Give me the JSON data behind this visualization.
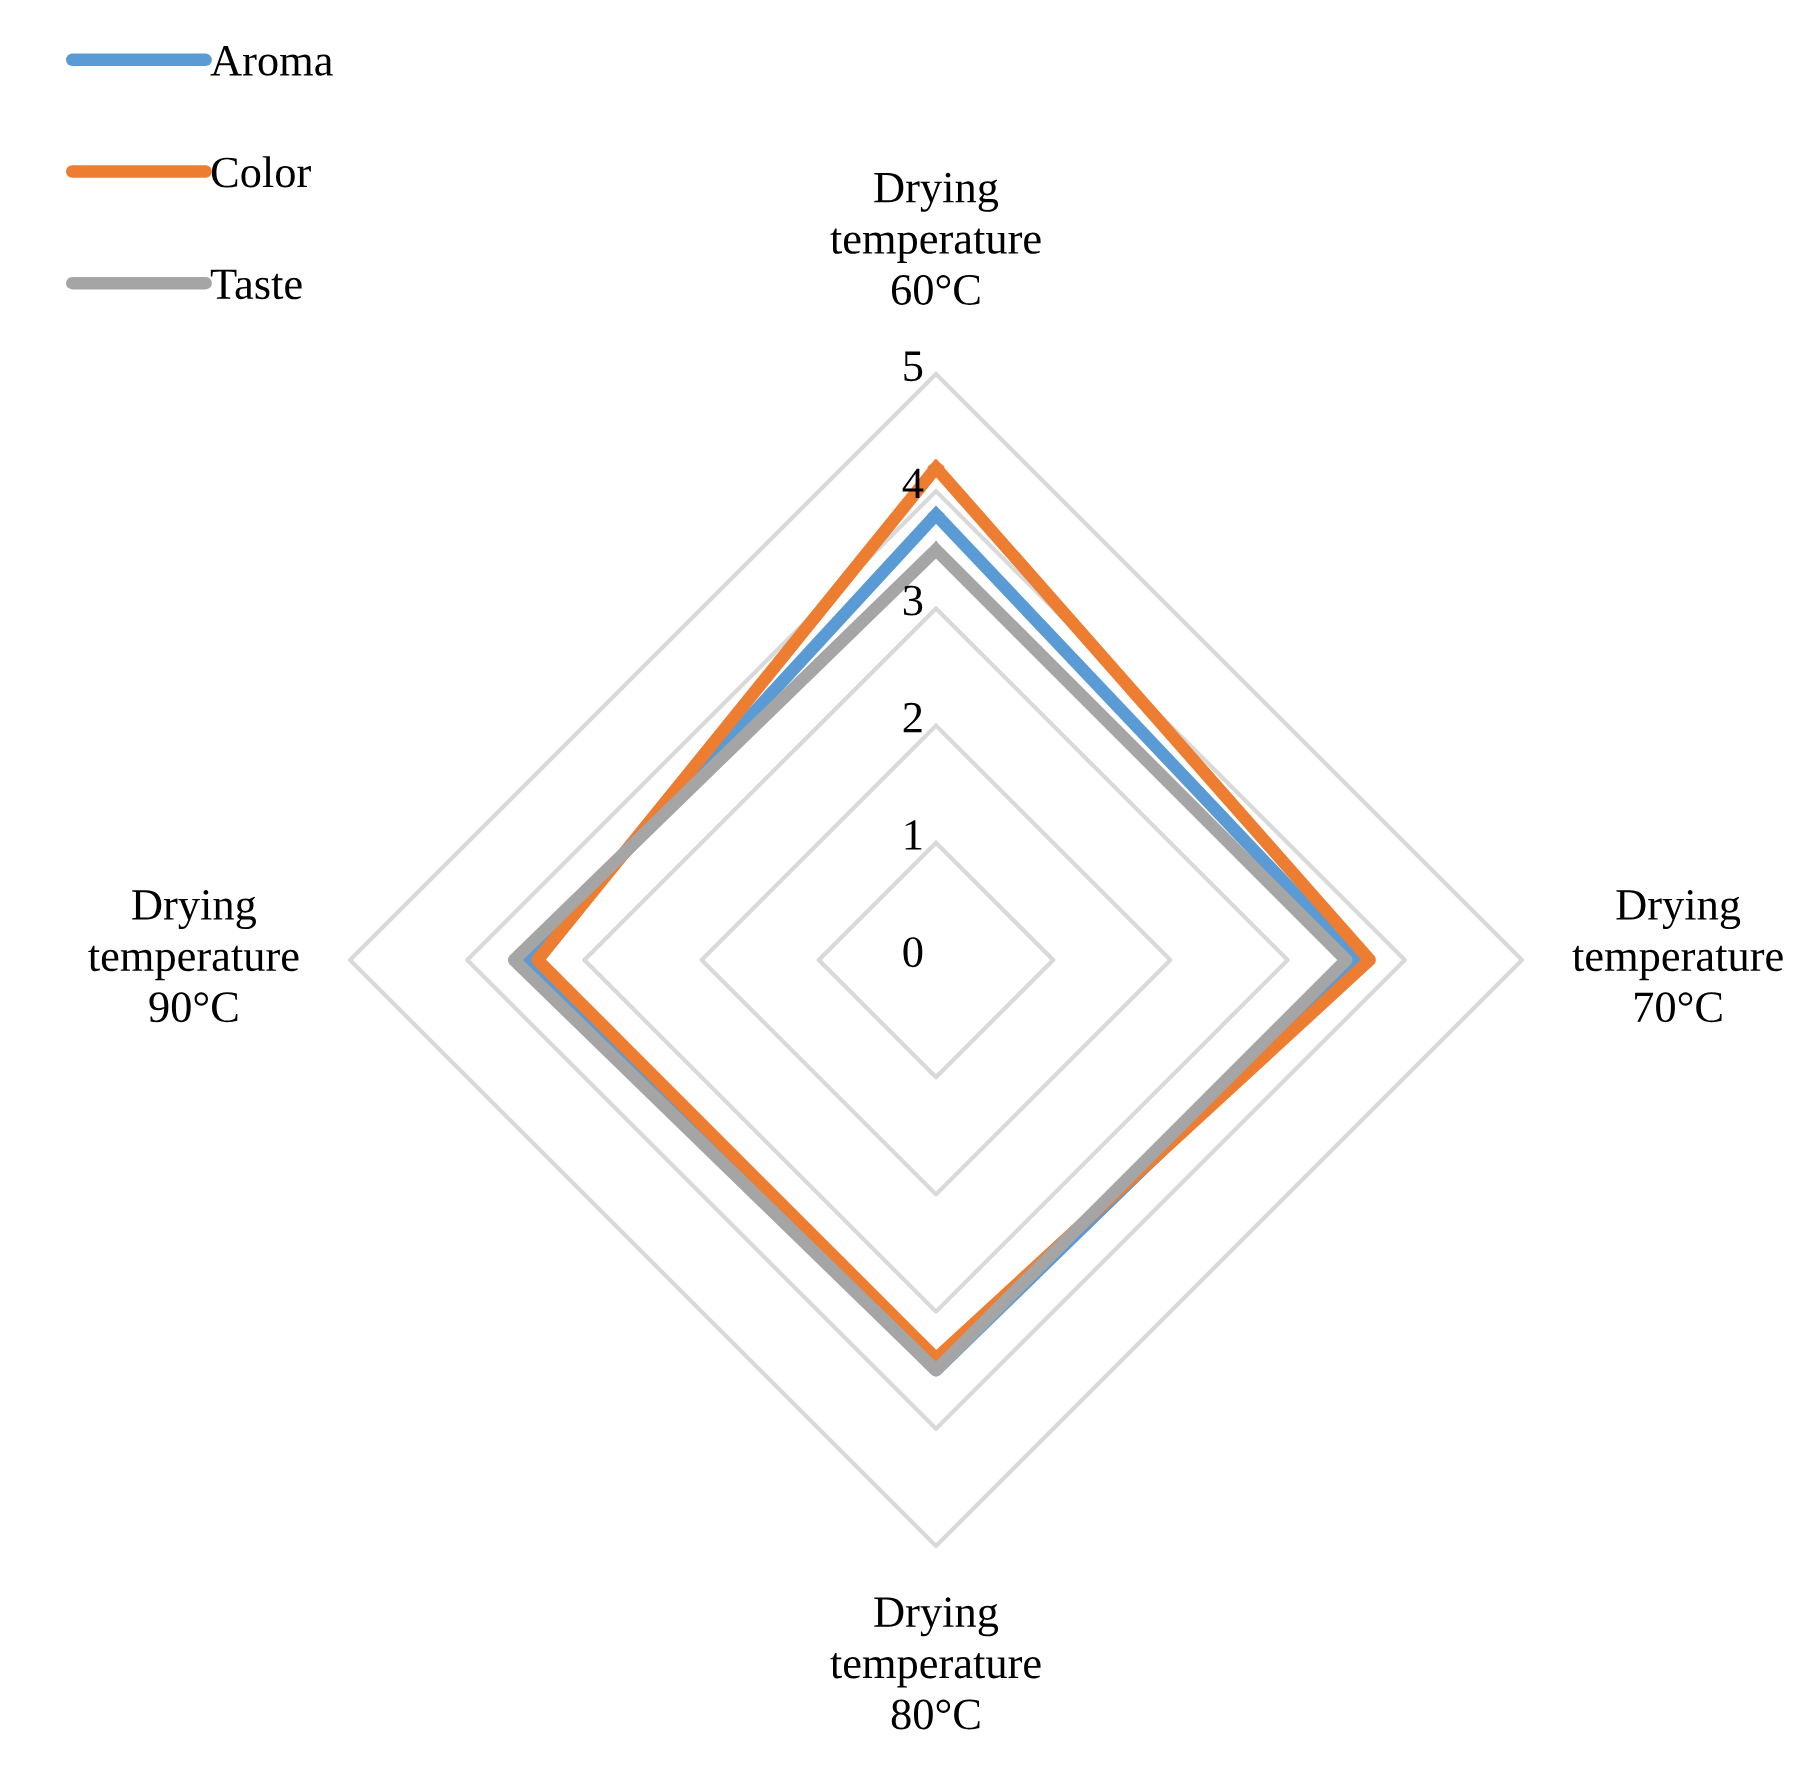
{
  "chart_data": {
    "type": "radar",
    "categories": [
      "Drying temperature 60°C",
      "Drying temperature 70°C",
      "Drying temperature 80°C",
      "Drying temperature 90°C"
    ],
    "series": [
      {
        "name": "Aroma",
        "color": "#5b9bd5",
        "values": [
          3.8,
          3.6,
          3.5,
          3.5
        ]
      },
      {
        "name": "Color",
        "color": "#ed7d31",
        "values": [
          4.2,
          3.7,
          3.4,
          3.4
        ]
      },
      {
        "name": "Taste",
        "color": "#a5a5a5",
        "values": [
          3.5,
          3.5,
          3.5,
          3.6
        ]
      }
    ],
    "ylim": [
      0,
      5
    ],
    "yticks": [
      0,
      1,
      2,
      3,
      4,
      5
    ],
    "grid": true,
    "legend": "top left",
    "marker": "none",
    "line_style": "solid"
  }
}
